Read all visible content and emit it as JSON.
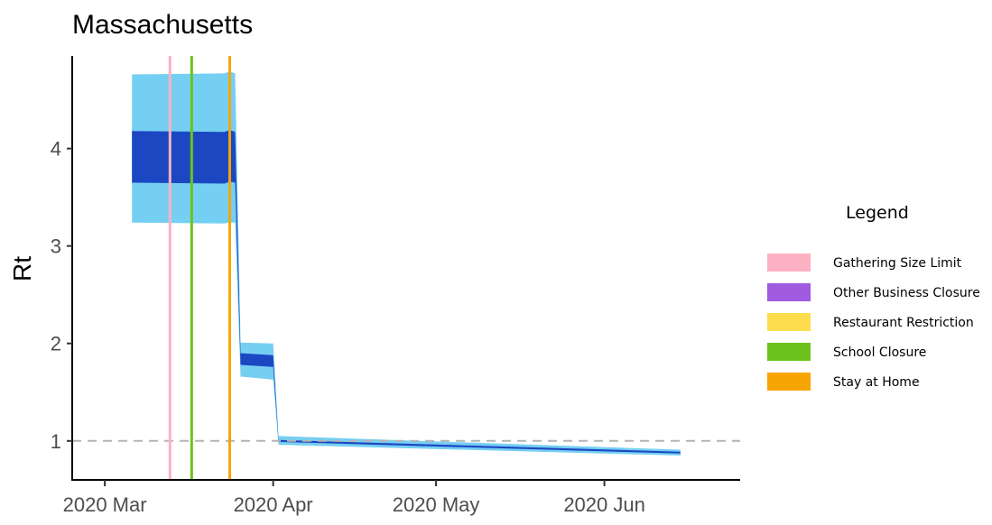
{
  "chart_data": {
    "type": "area",
    "title": "Massachusetts",
    "xlabel": "",
    "ylabel": "Rt",
    "x_ticks": [
      "2020-03-01",
      "2020-04-01",
      "2020-05-01",
      "2020-06-01"
    ],
    "x_tick_labels": [
      "2020 Mar",
      "2020 Apr",
      "2020 May",
      "2020 Jun"
    ],
    "y_ticks": [
      1,
      2,
      3,
      4
    ],
    "xlim": [
      "2020-02-24",
      "2020-06-26"
    ],
    "ylim": [
      0.6,
      4.95
    ],
    "reference_line": {
      "y": 1,
      "style": "dashed",
      "color": "#b3b3b3"
    },
    "bands": [
      {
        "name": "outer",
        "color": "#75cff2",
        "points": [
          {
            "x": "2020-03-06",
            "lo": 3.24,
            "hi": 4.76
          },
          {
            "x": "2020-03-23",
            "lo": 3.23,
            "hi": 4.77
          },
          {
            "x": "2020-03-24",
            "lo": 3.24,
            "hi": 4.79
          },
          {
            "x": "2020-03-25",
            "lo": 3.24,
            "hi": 4.77
          },
          {
            "x": "2020-03-26",
            "lo": 1.66,
            "hi": 2.01
          },
          {
            "x": "2020-04-01",
            "lo": 1.63,
            "hi": 2.0
          },
          {
            "x": "2020-04-02",
            "lo": 0.96,
            "hi": 1.05
          },
          {
            "x": "2020-06-15",
            "lo": 0.85,
            "hi": 0.91
          }
        ]
      },
      {
        "name": "inner",
        "color": "#1c47c2",
        "points": [
          {
            "x": "2020-03-06",
            "lo": 3.65,
            "hi": 4.18
          },
          {
            "x": "2020-03-23",
            "lo": 3.64,
            "hi": 4.17
          },
          {
            "x": "2020-03-24",
            "lo": 3.66,
            "hi": 4.19
          },
          {
            "x": "2020-03-25",
            "lo": 3.65,
            "hi": 4.17
          },
          {
            "x": "2020-03-26",
            "lo": 1.78,
            "hi": 1.9
          },
          {
            "x": "2020-04-01",
            "lo": 1.76,
            "hi": 1.88
          },
          {
            "x": "2020-04-02",
            "lo": 0.99,
            "hi": 1.01
          },
          {
            "x": "2020-06-15",
            "lo": 0.87,
            "hi": 0.89
          }
        ]
      }
    ],
    "interventions": [
      {
        "name": "Gathering Size Limit",
        "date": "2020-03-13",
        "color": "#fcb1c2"
      },
      {
        "name": "School Closure",
        "date": "2020-03-17",
        "color": "#6cc21c"
      },
      {
        "name": "Stay at Home",
        "date": "2020-03-24",
        "color": "#f7a503"
      }
    ],
    "legend": {
      "title": "Legend",
      "placement": "right",
      "entries": [
        {
          "label": "Gathering Size Limit",
          "color": "#fcb1c2"
        },
        {
          "label": "Other Business Closure",
          "color": "#a05be0"
        },
        {
          "label": "Restaurant Restriction",
          "color": "#fddd4d"
        },
        {
          "label": "School Closure",
          "color": "#6cc21c"
        },
        {
          "label": "Stay at Home",
          "color": "#f7a503"
        }
      ]
    },
    "grid": false
  }
}
